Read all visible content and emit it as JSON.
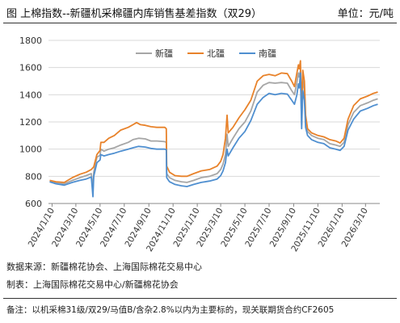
{
  "header": {
    "title": "图 上棉指数--新疆机采棉疆内库销售基差指数（双29）",
    "unit": "单位：元/吨"
  },
  "footer": {
    "source": "数据来源：新疆棉花协会、上海国际棉花交易中心",
    "maker": "制表：上海国际棉花交易中心/新疆棉花协会",
    "note": "备注：以机采棉31级/双29/马值B/含杂2.8%以内为主要标的，现关联期货合约CF2605"
  },
  "colors": {
    "新疆": "#a6a6a6",
    "北疆": "#e8822a",
    "南疆": "#4f8fd0"
  },
  "chart_data": {
    "type": "line",
    "title": "",
    "xlabel": "",
    "ylabel": "",
    "ylim": [
      600,
      1800
    ],
    "yticks": [
      600,
      800,
      1000,
      1200,
      1400,
      1600,
      1800
    ],
    "xlim": [
      "2024-01-01",
      "2026-04-15"
    ],
    "xticks": [
      "2024/1/10",
      "2024/3/10",
      "2024/5/10",
      "2024/7/10",
      "2024/9/10",
      "2024/11/10",
      "2025/1/10",
      "2025/3/10",
      "2025/5/10",
      "2025/7/10",
      "2025/9/10",
      "2025/11/10",
      "2026/1/10",
      "2026/3/10"
    ],
    "grid": true,
    "legend": "top-center",
    "series": [
      {
        "name": "新疆",
        "points": [
          [
            "2024-01-04",
            760
          ],
          [
            "2024-01-20",
            750
          ],
          [
            "2024-02-10",
            745
          ],
          [
            "2024-03-01",
            770
          ],
          [
            "2024-03-20",
            790
          ],
          [
            "2024-04-05",
            805
          ],
          [
            "2024-04-18",
            820
          ],
          [
            "2024-04-22",
            700
          ],
          [
            "2024-04-24",
            830
          ],
          [
            "2024-05-02",
            940
          ],
          [
            "2024-05-10",
            955
          ],
          [
            "2024-05-12",
            1000
          ],
          [
            "2024-05-20",
            985
          ],
          [
            "2024-06-01",
            1000
          ],
          [
            "2024-06-15",
            1010
          ],
          [
            "2024-07-01",
            1030
          ],
          [
            "2024-07-20",
            1050
          ],
          [
            "2024-08-01",
            1070
          ],
          [
            "2024-08-15",
            1080
          ],
          [
            "2024-09-01",
            1075
          ],
          [
            "2024-09-15",
            1060
          ],
          [
            "2024-09-30",
            1060
          ],
          [
            "2024-10-20",
            1055
          ],
          [
            "2024-10-24",
            1050
          ],
          [
            "2024-10-25",
            820
          ],
          [
            "2024-11-01",
            790
          ],
          [
            "2024-11-15",
            770
          ],
          [
            "2024-12-01",
            760
          ],
          [
            "2024-12-15",
            755
          ],
          [
            "2025-01-01",
            770
          ],
          [
            "2025-01-20",
            790
          ],
          [
            "2025-02-10",
            800
          ],
          [
            "2025-03-01",
            820
          ],
          [
            "2025-03-10",
            850
          ],
          [
            "2025-03-16",
            890
          ],
          [
            "2025-03-22",
            960
          ],
          [
            "2025-03-26",
            1110
          ],
          [
            "2025-03-29",
            1020
          ],
          [
            "2025-04-10",
            1080
          ],
          [
            "2025-04-25",
            1150
          ],
          [
            "2025-05-10",
            1200
          ],
          [
            "2025-05-25",
            1280
          ],
          [
            "2025-06-10",
            1420
          ],
          [
            "2025-06-25",
            1470
          ],
          [
            "2025-07-10",
            1490
          ],
          [
            "2025-07-25",
            1485
          ],
          [
            "2025-08-10",
            1490
          ],
          [
            "2025-08-25",
            1485
          ],
          [
            "2025-09-05",
            1430
          ],
          [
            "2025-09-12",
            1400
          ],
          [
            "2025-09-18",
            1490
          ],
          [
            "2025-09-22",
            1560
          ],
          [
            "2025-09-24",
            1530
          ],
          [
            "2025-09-27",
            1580
          ],
          [
            "2025-09-30",
            1180
          ],
          [
            "2025-10-03",
            1510
          ],
          [
            "2025-10-07",
            1440
          ],
          [
            "2025-10-10",
            1200
          ],
          [
            "2025-10-15",
            1130
          ],
          [
            "2025-10-25",
            1100
          ],
          [
            "2025-11-10",
            1080
          ],
          [
            "2025-11-25",
            1070
          ],
          [
            "2025-12-10",
            1040
          ],
          [
            "2025-12-25",
            1030
          ],
          [
            "2026-01-05",
            1020
          ],
          [
            "2026-01-15",
            1050
          ],
          [
            "2026-01-25",
            1180
          ],
          [
            "2026-02-08",
            1270
          ],
          [
            "2026-02-25",
            1320
          ],
          [
            "2026-03-15",
            1340
          ],
          [
            "2026-03-30",
            1360
          ],
          [
            "2026-04-10",
            1370
          ]
        ]
      },
      {
        "name": "北疆",
        "points": [
          [
            "2024-01-04",
            770
          ],
          [
            "2024-01-20",
            760
          ],
          [
            "2024-02-10",
            755
          ],
          [
            "2024-03-01",
            790
          ],
          [
            "2024-03-20",
            815
          ],
          [
            "2024-04-05",
            830
          ],
          [
            "2024-04-18",
            850
          ],
          [
            "2024-04-24",
            870
          ],
          [
            "2024-05-02",
            960
          ],
          [
            "2024-05-10",
            990
          ],
          [
            "2024-05-12",
            1050
          ],
          [
            "2024-05-20",
            1050
          ],
          [
            "2024-06-01",
            1080
          ],
          [
            "2024-06-15",
            1100
          ],
          [
            "2024-07-01",
            1140
          ],
          [
            "2024-07-20",
            1160
          ],
          [
            "2024-08-01",
            1180
          ],
          [
            "2024-08-10",
            1195
          ],
          [
            "2024-08-20",
            1180
          ],
          [
            "2024-09-01",
            1175
          ],
          [
            "2024-09-15",
            1165
          ],
          [
            "2024-09-30",
            1160
          ],
          [
            "2024-10-20",
            1160
          ],
          [
            "2024-10-24",
            1150
          ],
          [
            "2024-10-25",
            875
          ],
          [
            "2024-11-01",
            830
          ],
          [
            "2024-11-15",
            805
          ],
          [
            "2024-12-01",
            800
          ],
          [
            "2024-12-15",
            800
          ],
          [
            "2025-01-01",
            820
          ],
          [
            "2025-01-20",
            840
          ],
          [
            "2025-02-10",
            850
          ],
          [
            "2025-03-01",
            875
          ],
          [
            "2025-03-10",
            910
          ],
          [
            "2025-03-16",
            960
          ],
          [
            "2025-03-22",
            1080
          ],
          [
            "2025-03-26",
            1250
          ],
          [
            "2025-03-29",
            1120
          ],
          [
            "2025-04-10",
            1160
          ],
          [
            "2025-04-25",
            1230
          ],
          [
            "2025-05-10",
            1290
          ],
          [
            "2025-05-25",
            1360
          ],
          [
            "2025-06-10",
            1500
          ],
          [
            "2025-06-25",
            1540
          ],
          [
            "2025-07-10",
            1550
          ],
          [
            "2025-07-25",
            1540
          ],
          [
            "2025-08-10",
            1560
          ],
          [
            "2025-08-25",
            1555
          ],
          [
            "2025-09-05",
            1500
          ],
          [
            "2025-09-12",
            1460
          ],
          [
            "2025-09-18",
            1560
          ],
          [
            "2025-09-22",
            1620
          ],
          [
            "2025-09-24",
            1590
          ],
          [
            "2025-09-27",
            1650
          ],
          [
            "2025-09-30",
            1280
          ],
          [
            "2025-10-03",
            1580
          ],
          [
            "2025-10-07",
            1500
          ],
          [
            "2025-10-10",
            1250
          ],
          [
            "2025-10-15",
            1150
          ],
          [
            "2025-10-25",
            1120
          ],
          [
            "2025-11-10",
            1100
          ],
          [
            "2025-11-25",
            1090
          ],
          [
            "2025-12-10",
            1070
          ],
          [
            "2025-12-25",
            1060
          ],
          [
            "2026-01-05",
            1045
          ],
          [
            "2026-01-15",
            1080
          ],
          [
            "2026-01-25",
            1220
          ],
          [
            "2026-02-08",
            1320
          ],
          [
            "2026-02-25",
            1370
          ],
          [
            "2026-03-15",
            1390
          ],
          [
            "2026-03-30",
            1410
          ],
          [
            "2026-04-10",
            1420
          ]
        ]
      },
      {
        "name": "南疆",
        "points": [
          [
            "2024-01-04",
            760
          ],
          [
            "2024-01-20",
            745
          ],
          [
            "2024-02-10",
            735
          ],
          [
            "2024-03-01",
            755
          ],
          [
            "2024-03-20",
            770
          ],
          [
            "2024-04-05",
            780
          ],
          [
            "2024-04-18",
            795
          ],
          [
            "2024-04-22",
            650
          ],
          [
            "2024-04-24",
            800
          ],
          [
            "2024-05-02",
            900
          ],
          [
            "2024-05-10",
            920
          ],
          [
            "2024-05-12",
            960
          ],
          [
            "2024-05-20",
            950
          ],
          [
            "2024-06-01",
            960
          ],
          [
            "2024-06-15",
            970
          ],
          [
            "2024-07-01",
            985
          ],
          [
            "2024-07-20",
            1000
          ],
          [
            "2024-08-01",
            1010
          ],
          [
            "2024-08-15",
            1020
          ],
          [
            "2024-09-01",
            1015
          ],
          [
            "2024-09-15",
            1005
          ],
          [
            "2024-09-30",
            1000
          ],
          [
            "2024-10-20",
            1000
          ],
          [
            "2024-10-24",
            995
          ],
          [
            "2024-10-25",
            790
          ],
          [
            "2024-11-01",
            760
          ],
          [
            "2024-11-15",
            740
          ],
          [
            "2024-12-01",
            730
          ],
          [
            "2024-12-15",
            725
          ],
          [
            "2025-01-01",
            740
          ],
          [
            "2025-01-20",
            755
          ],
          [
            "2025-02-10",
            765
          ],
          [
            "2025-03-01",
            780
          ],
          [
            "2025-03-10",
            805
          ],
          [
            "2025-03-16",
            840
          ],
          [
            "2025-03-22",
            900
          ],
          [
            "2025-03-26",
            1000
          ],
          [
            "2025-03-29",
            950
          ],
          [
            "2025-04-10",
            1010
          ],
          [
            "2025-04-25",
            1080
          ],
          [
            "2025-05-10",
            1130
          ],
          [
            "2025-05-25",
            1210
          ],
          [
            "2025-06-10",
            1330
          ],
          [
            "2025-06-25",
            1380
          ],
          [
            "2025-07-10",
            1410
          ],
          [
            "2025-07-25",
            1400
          ],
          [
            "2025-08-10",
            1410
          ],
          [
            "2025-08-25",
            1405
          ],
          [
            "2025-09-05",
            1360
          ],
          [
            "2025-09-12",
            1330
          ],
          [
            "2025-09-18",
            1400
          ],
          [
            "2025-09-22",
            1480
          ],
          [
            "2025-09-24",
            1450
          ],
          [
            "2025-09-27",
            1560
          ],
          [
            "2025-09-30",
            1150
          ],
          [
            "2025-10-03",
            1430
          ],
          [
            "2025-10-07",
            1360
          ],
          [
            "2025-10-10",
            1160
          ],
          [
            "2025-10-15",
            1100
          ],
          [
            "2025-10-25",
            1070
          ],
          [
            "2025-11-10",
            1050
          ],
          [
            "2025-11-25",
            1040
          ],
          [
            "2025-12-10",
            1010
          ],
          [
            "2025-12-25",
            1000
          ],
          [
            "2026-01-05",
            990
          ],
          [
            "2026-01-15",
            1020
          ],
          [
            "2026-01-25",
            1140
          ],
          [
            "2026-02-08",
            1220
          ],
          [
            "2026-02-25",
            1280
          ],
          [
            "2026-03-15",
            1300
          ],
          [
            "2026-03-30",
            1320
          ],
          [
            "2026-04-10",
            1330
          ]
        ]
      }
    ]
  }
}
